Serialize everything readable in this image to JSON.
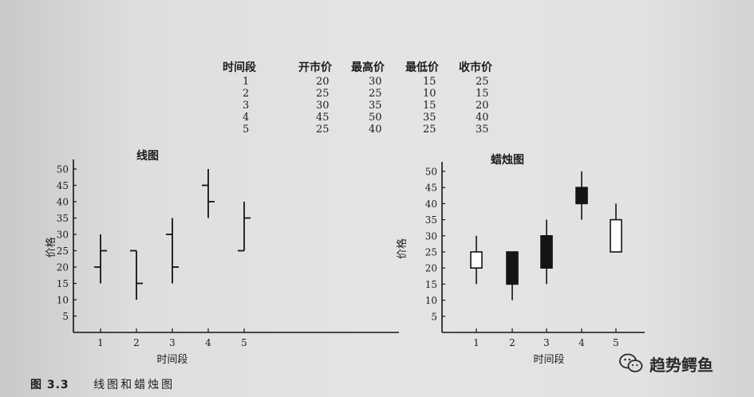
{
  "table": {
    "headers": [
      "时间段",
      "开市价",
      "最高价",
      "最低价",
      "收市价"
    ],
    "rows": [
      [
        "1",
        "20",
        "30",
        "15",
        "25"
      ],
      [
        "2",
        "25",
        "25",
        "10",
        "15"
      ],
      [
        "3",
        "30",
        "35",
        "15",
        "20"
      ],
      [
        "4",
        "45",
        "50",
        "35",
        "40"
      ],
      [
        "5",
        "25",
        "40",
        "25",
        "35"
      ]
    ]
  },
  "chart_data": [
    {
      "type": "ohlc-bar",
      "title": "线图",
      "xlabel": "时间段",
      "ylabel": "价格",
      "categories": [
        "1",
        "2",
        "3",
        "4",
        "5"
      ],
      "open": [
        20,
        25,
        30,
        45,
        25
      ],
      "high": [
        30,
        25,
        35,
        50,
        40
      ],
      "low": [
        15,
        10,
        15,
        35,
        25
      ],
      "close": [
        25,
        15,
        20,
        40,
        35
      ],
      "ylim": [
        0,
        50
      ],
      "yticks": [
        "5",
        "10",
        "15",
        "20",
        "25",
        "30",
        "35",
        "40",
        "45",
        "50"
      ],
      "grid": false
    },
    {
      "type": "candlestick",
      "title": "蜡烛图",
      "xlabel": "时间段",
      "ylabel": "价格",
      "categories": [
        "1",
        "2",
        "3",
        "4",
        "5"
      ],
      "open": [
        20,
        25,
        30,
        45,
        25
      ],
      "high": [
        30,
        25,
        35,
        50,
        40
      ],
      "low": [
        15,
        10,
        15,
        35,
        25
      ],
      "close": [
        25,
        15,
        20,
        40,
        35
      ],
      "ylim": [
        0,
        50
      ],
      "yticks": [
        "5",
        "10",
        "15",
        "20",
        "25",
        "30",
        "35",
        "40",
        "45",
        "50"
      ],
      "colors": {
        "up": "#ffffff",
        "down": "#141414",
        "stroke": "#141414"
      },
      "grid": false
    }
  ],
  "caption": {
    "figure": "图 3.3",
    "title": "线图和蜡烛图"
  },
  "watermark": {
    "icon": "wechat-icon",
    "text": "趋势鳄鱼"
  }
}
